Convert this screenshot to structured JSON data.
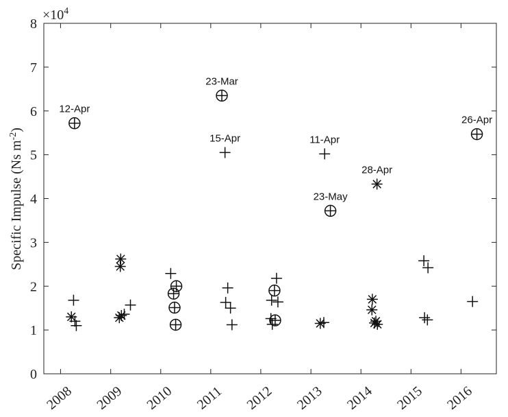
{
  "chart_data": {
    "type": "scatter",
    "ylabel": "Specific Impulse (Ns m",
    "ylabel_sup": "-2",
    "ylabel_close": ")",
    "multiplier": "×10",
    "multiplier_exp": "4",
    "ylim": [
      0,
      80000
    ],
    "yticks": [
      {
        "value": 0,
        "label": "0"
      },
      {
        "value": 10000,
        "label": "1"
      },
      {
        "value": 20000,
        "label": "2"
      },
      {
        "value": 30000,
        "label": "3"
      },
      {
        "value": 40000,
        "label": "4"
      },
      {
        "value": 50000,
        "label": "5"
      },
      {
        "value": 60000,
        "label": "6"
      },
      {
        "value": 70000,
        "label": "7"
      },
      {
        "value": 80000,
        "label": "8"
      }
    ],
    "xlim": [
      "2007-09-01",
      "2016-09-15"
    ],
    "xticks": [
      {
        "value": "2008-01-01",
        "label": "2008"
      },
      {
        "value": "2009-01-01",
        "label": "2009"
      },
      {
        "value": "2010-01-01",
        "label": "2010"
      },
      {
        "value": "2011-01-01",
        "label": "2011"
      },
      {
        "value": "2012-01-01",
        "label": "2012"
      },
      {
        "value": "2013-01-01",
        "label": "2013"
      },
      {
        "value": "2014-01-01",
        "label": "2014"
      },
      {
        "value": "2015-01-01",
        "label": "2015"
      },
      {
        "value": "2016-01-01",
        "label": "2016"
      }
    ],
    "grid": false,
    "legend": "none",
    "points": [
      {
        "x": "2008-04-12",
        "y": 57200,
        "marker": "circle-plus",
        "label": "12-Apr"
      },
      {
        "x": "2008-03-20",
        "y": 13000,
        "marker": "asterisk"
      },
      {
        "x": "2008-04-05",
        "y": 16800,
        "marker": "plus"
      },
      {
        "x": "2008-04-15",
        "y": 12000,
        "marker": "plus"
      },
      {
        "x": "2008-04-25",
        "y": 11000,
        "marker": "plus"
      },
      {
        "x": "2009-03-15",
        "y": 26200,
        "marker": "asterisk"
      },
      {
        "x": "2009-03-12",
        "y": 24500,
        "marker": "asterisk"
      },
      {
        "x": "2009-03-05",
        "y": 12800,
        "marker": "asterisk"
      },
      {
        "x": "2009-03-20",
        "y": 13300,
        "marker": "asterisk"
      },
      {
        "x": "2009-04-10",
        "y": 13600,
        "marker": "plus"
      },
      {
        "x": "2009-05-25",
        "y": 15700,
        "marker": "plus"
      },
      {
        "x": "2010-03-15",
        "y": 22900,
        "marker": "plus"
      },
      {
        "x": "2010-04-05",
        "y": 18300,
        "marker": "circle-plus"
      },
      {
        "x": "2010-04-25",
        "y": 20000,
        "marker": "circle-plus"
      },
      {
        "x": "2010-04-12",
        "y": 15100,
        "marker": "circle-plus"
      },
      {
        "x": "2010-04-20",
        "y": 11200,
        "marker": "circle-plus"
      },
      {
        "x": "2011-03-23",
        "y": 63500,
        "marker": "circle-plus",
        "label": "23-Mar"
      },
      {
        "x": "2011-04-15",
        "y": 50500,
        "marker": "plus",
        "label": "15-Apr"
      },
      {
        "x": "2011-05-05",
        "y": 19600,
        "marker": "plus"
      },
      {
        "x": "2011-04-20",
        "y": 16300,
        "marker": "plus"
      },
      {
        "x": "2011-05-25",
        "y": 15000,
        "marker": "plus"
      },
      {
        "x": "2011-06-05",
        "y": 11200,
        "marker": "plus"
      },
      {
        "x": "2012-04-25",
        "y": 21800,
        "marker": "plus"
      },
      {
        "x": "2012-04-10",
        "y": 19000,
        "marker": "circle-plus"
      },
      {
        "x": "2012-03-20",
        "y": 16800,
        "marker": "plus"
      },
      {
        "x": "2012-05-05",
        "y": 16400,
        "marker": "plus"
      },
      {
        "x": "2012-04-15",
        "y": 12200,
        "marker": "circle-plus"
      },
      {
        "x": "2012-03-15",
        "y": 12600,
        "marker": "plus"
      },
      {
        "x": "2012-03-25",
        "y": 11300,
        "marker": "plus"
      },
      {
        "x": "2013-04-11",
        "y": 50200,
        "marker": "plus",
        "label": "11-Apr"
      },
      {
        "x": "2013-05-23",
        "y": 37200,
        "marker": "circle-plus",
        "label": "23-May"
      },
      {
        "x": "2013-03-10",
        "y": 11500,
        "marker": "asterisk"
      },
      {
        "x": "2013-04-05",
        "y": 11700,
        "marker": "plus"
      },
      {
        "x": "2014-04-28",
        "y": 43300,
        "marker": "asterisk",
        "label": "28-Apr"
      },
      {
        "x": "2014-03-25",
        "y": 17000,
        "marker": "asterisk"
      },
      {
        "x": "2014-03-22",
        "y": 14600,
        "marker": "asterisk"
      },
      {
        "x": "2014-04-10",
        "y": 11600,
        "marker": "asterisk"
      },
      {
        "x": "2014-04-20",
        "y": 12000,
        "marker": "asterisk"
      },
      {
        "x": "2014-05-01",
        "y": 11300,
        "marker": "asterisk"
      },
      {
        "x": "2015-04-05",
        "y": 25800,
        "marker": "plus"
      },
      {
        "x": "2015-05-05",
        "y": 24200,
        "marker": "plus"
      },
      {
        "x": "2015-04-10",
        "y": 12800,
        "marker": "plus"
      },
      {
        "x": "2015-05-01",
        "y": 12300,
        "marker": "plus"
      },
      {
        "x": "2016-04-26",
        "y": 54700,
        "marker": "circle-plus",
        "label": "26-Apr"
      },
      {
        "x": "2016-03-25",
        "y": 16500,
        "marker": "plus"
      }
    ]
  }
}
